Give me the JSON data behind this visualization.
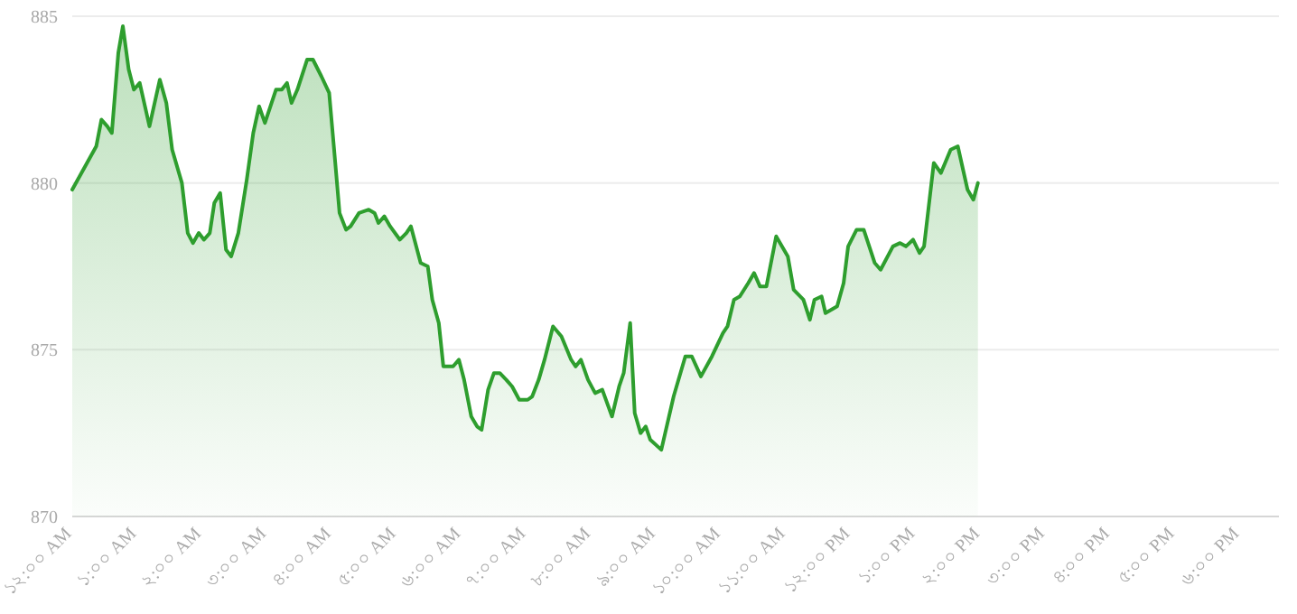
{
  "chart_data": {
    "type": "area",
    "x": [
      0,
      0.37,
      0.45,
      0.54,
      0.61,
      0.71,
      0.78,
      0.87,
      0.95,
      1.04,
      1.19,
      1.35,
      1.45,
      1.54,
      1.69,
      1.78,
      1.86,
      1.95,
      2.03,
      2.12,
      2.19,
      2.28,
      2.37,
      2.45,
      2.56,
      2.69,
      2.79,
      2.88,
      2.97,
      3.14,
      3.23,
      3.31,
      3.38,
      3.47,
      3.62,
      3.71,
      3.84,
      3.96,
      4.05,
      4.12,
      4.22,
      4.29,
      4.42,
      4.57,
      4.66,
      4.72,
      4.81,
      4.9,
      5.05,
      5.15,
      5.22,
      5.37,
      5.48,
      5.55,
      5.65,
      5.72,
      5.87,
      5.96,
      6.04,
      6.15,
      6.24,
      6.31,
      6.41,
      6.5,
      6.59,
      6.69,
      6.78,
      6.89,
      7.02,
      7.09,
      7.19,
      7.28,
      7.41,
      7.54,
      7.69,
      7.76,
      7.84,
      7.95,
      8.06,
      8.17,
      8.32,
      8.43,
      8.5,
      8.6,
      8.67,
      8.76,
      8.84,
      8.91,
      9.08,
      9.27,
      9.45,
      9.55,
      9.69,
      9.86,
      10.03,
      10.1,
      10.2,
      10.29,
      10.42,
      10.51,
      10.6,
      10.7,
      10.85,
      11.03,
      11.12,
      11.27,
      11.37,
      11.44,
      11.55,
      11.61,
      11.79,
      11.89,
      11.96,
      12.09,
      12.2,
      12.37,
      12.46,
      12.65,
      12.76,
      12.85,
      12.96,
      13.06,
      13.13,
      13.28,
      13.39,
      13.54,
      13.65,
      13.8,
      13.89,
      13.96
    ],
    "series": [
      {
        "color": "#2e9e2e",
        "values": [
          879.8,
          881.1,
          881.9,
          881.7,
          881.5,
          883.9,
          884.7,
          883.4,
          882.8,
          883.0,
          881.7,
          883.1,
          882.4,
          881.0,
          880.0,
          878.5,
          878.2,
          878.5,
          878.3,
          878.5,
          879.4,
          879.7,
          878.0,
          877.8,
          878.5,
          880.1,
          881.5,
          882.3,
          881.8,
          882.8,
          882.8,
          883.0,
          882.4,
          882.8,
          883.7,
          883.7,
          883.2,
          882.7,
          880.7,
          879.1,
          878.6,
          878.7,
          879.1,
          879.2,
          879.1,
          878.8,
          879.0,
          878.7,
          878.3,
          878.5,
          878.7,
          877.6,
          877.5,
          876.5,
          875.8,
          874.5,
          874.5,
          874.7,
          874.1,
          873.0,
          872.7,
          872.6,
          873.8,
          874.3,
          874.3,
          874.1,
          873.9,
          873.5,
          873.5,
          873.6,
          874.1,
          874.7,
          875.7,
          875.4,
          874.7,
          874.5,
          874.7,
          874.1,
          873.7,
          873.8,
          873.0,
          873.9,
          874.3,
          875.8,
          873.1,
          872.5,
          872.7,
          872.3,
          872.0,
          873.6,
          874.8,
          874.8,
          874.2,
          874.8,
          875.5,
          875.7,
          876.5,
          876.6,
          877.0,
          877.3,
          876.9,
          876.9,
          878.4,
          877.8,
          876.8,
          876.5,
          875.9,
          876.5,
          876.6,
          876.1,
          876.3,
          877.0,
          878.1,
          878.6,
          878.6,
          877.6,
          877.4,
          878.1,
          878.2,
          878.1,
          878.3,
          877.9,
          878.1,
          880.6,
          880.3,
          881.0,
          881.1,
          879.8,
          879.5,
          880.0
        ]
      }
    ],
    "xlim": [
      0,
      18.6
    ],
    "xticks": [
      {
        "value": 0,
        "label": "১২:০০ AM"
      },
      {
        "value": 1,
        "label": "১:০০ AM"
      },
      {
        "value": 2,
        "label": "২:০০ AM"
      },
      {
        "value": 3,
        "label": "৩:০০ AM"
      },
      {
        "value": 4,
        "label": "৪:০০ AM"
      },
      {
        "value": 5,
        "label": "৫:০০ AM"
      },
      {
        "value": 6,
        "label": "৬:০০ AM"
      },
      {
        "value": 7,
        "label": "৭:০০ AM"
      },
      {
        "value": 8,
        "label": "৮:০০ AM"
      },
      {
        "value": 9,
        "label": "৯:০০ AM"
      },
      {
        "value": 10,
        "label": "১০:০০ AM"
      },
      {
        "value": 11,
        "label": "১১:০০ AM"
      },
      {
        "value": 12,
        "label": "১২:০০ PM"
      },
      {
        "value": 13,
        "label": "১:০০ PM"
      },
      {
        "value": 14,
        "label": "২:০০ PM"
      },
      {
        "value": 15,
        "label": "৩:০০ PM"
      },
      {
        "value": 16,
        "label": "৪:০০ PM"
      },
      {
        "value": 17,
        "label": "৫:০০ PM"
      },
      {
        "value": 18,
        "label": "৬:০০ PM"
      }
    ],
    "ylim": [
      870,
      885
    ],
    "yticks": [
      870,
      875,
      880,
      885
    ],
    "grid": "y"
  }
}
